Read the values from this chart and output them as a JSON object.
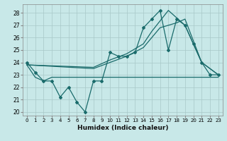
{
  "xlabel": "Humidex (Indice chaleur)",
  "background_color": "#c8e8e8",
  "line_color": "#1a6b6b",
  "grid_color": "#a8c8c8",
  "xlim": [
    -0.5,
    23.5
  ],
  "ylim": [
    19.7,
    28.7
  ],
  "yticks": [
    20,
    21,
    22,
    23,
    24,
    25,
    26,
    27,
    28
  ],
  "xticks": [
    0,
    1,
    2,
    3,
    4,
    5,
    6,
    7,
    8,
    9,
    10,
    11,
    12,
    13,
    14,
    15,
    16,
    17,
    18,
    19,
    20,
    21,
    22,
    23
  ],
  "series_main": [
    24,
    23.2,
    22.5,
    22.5,
    21.2,
    22,
    20.8,
    20,
    22.5,
    22.5,
    24.8,
    24.5,
    24.5,
    24.8,
    26.8,
    27.5,
    28.2,
    25.0,
    27.5,
    27.0,
    25.5,
    24.0,
    23.0,
    23.0
  ],
  "series_flat_x": [
    0,
    1,
    2,
    3,
    4,
    5,
    6,
    7,
    8,
    9,
    10,
    11,
    12,
    13,
    14,
    15,
    16,
    17,
    18,
    19,
    20,
    21,
    22,
    23
  ],
  "series_flat_y": [
    23.8,
    22.8,
    22.5,
    22.8,
    22.8,
    22.8,
    22.8,
    22.8,
    22.8,
    22.8,
    22.8,
    22.8,
    22.8,
    22.8,
    22.8,
    22.8,
    22.8,
    22.8,
    22.8,
    22.8,
    22.8,
    22.8,
    22.8,
    22.8
  ],
  "trend1_x": [
    0,
    8,
    10,
    12,
    14,
    16,
    18,
    19,
    21,
    23
  ],
  "trend1_y": [
    23.8,
    23.5,
    24.0,
    24.5,
    25.2,
    26.8,
    27.2,
    27.5,
    24.0,
    23.0
  ],
  "trend2_x": [
    0,
    8,
    10,
    12,
    14,
    15,
    17,
    19,
    21,
    23
  ],
  "trend2_y": [
    23.8,
    23.6,
    24.2,
    24.7,
    25.5,
    26.5,
    28.2,
    27.0,
    24.0,
    23.0
  ]
}
